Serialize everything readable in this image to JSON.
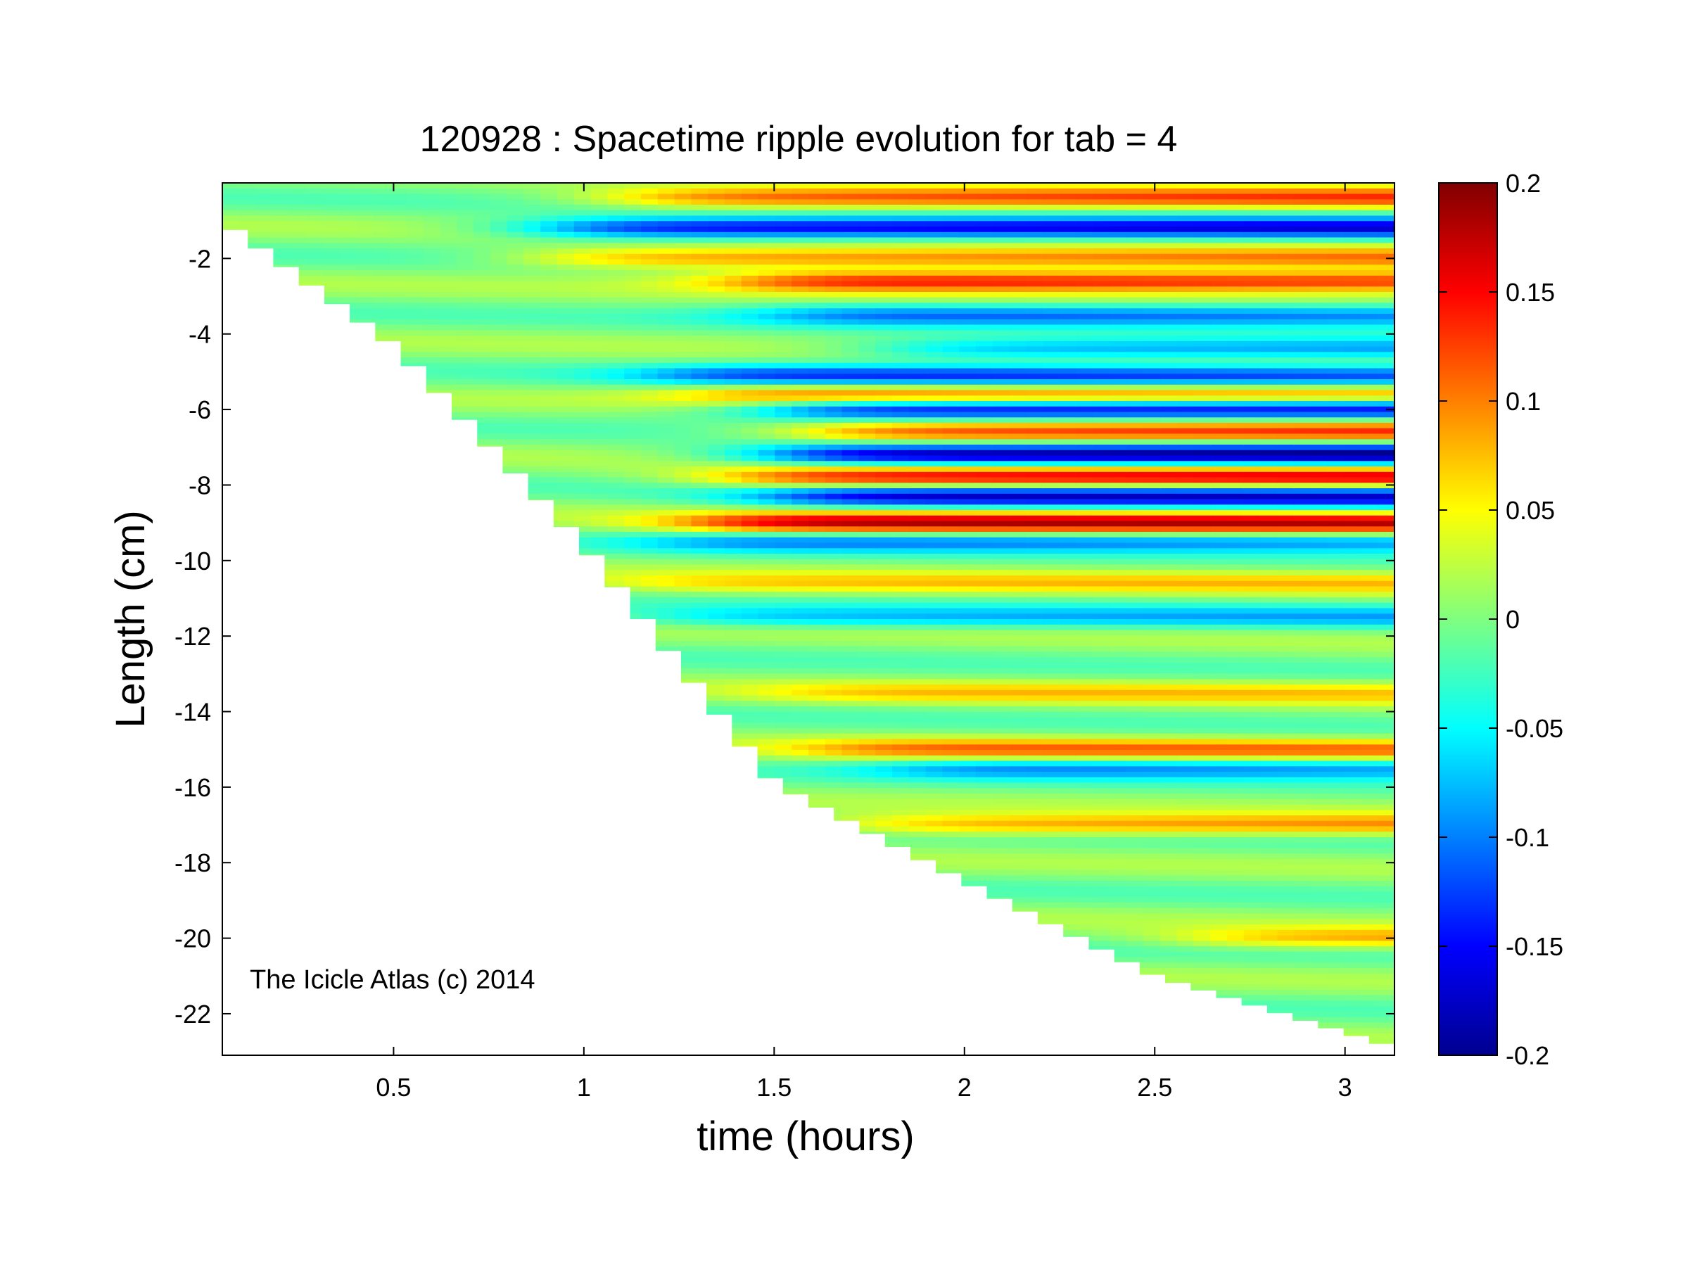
{
  "chart_data": {
    "type": "heatmap",
    "title": "120928 : Spacetime ripple evolution for tab = 4",
    "xlabel": "time (hours)",
    "ylabel": "Length (cm)",
    "xlim": [
      0.05,
      3.13
    ],
    "ylim": [
      -23.1,
      0
    ],
    "x_ticks": [
      0.5,
      1,
      1.5,
      2,
      2.5,
      3
    ],
    "x_tick_labels": [
      "0.5",
      "1",
      "1.5",
      "2",
      "2.5",
      "3"
    ],
    "y_ticks": [
      -2,
      -4,
      -6,
      -8,
      -10,
      -12,
      -14,
      -16,
      -18,
      -20,
      -22
    ],
    "y_tick_labels": [
      "-2",
      "-4",
      "-6",
      "-8",
      "-10",
      "-12",
      "-14",
      "-16",
      "-18",
      "-20",
      "-22"
    ],
    "colormap": "jet",
    "color_range": [
      -0.2,
      0.2
    ],
    "colorbar_ticks": [
      0.2,
      0.15,
      0.1,
      0.05,
      0,
      -0.05,
      -0.1,
      -0.15,
      -0.2
    ],
    "colorbar_tick_labels": [
      "0.2",
      "0.15",
      "0.1",
      "0.05",
      "0",
      "-0.05",
      "-0.1",
      "-0.15",
      "-0.2"
    ],
    "grid": false,
    "annotations": [
      "The Icicle Atlas (c) 2014"
    ],
    "icicle_tip_boundary": {
      "time_hours": [
        0.05,
        0.5,
        1.0,
        1.5,
        2.0,
        2.5,
        3.0,
        3.13
      ],
      "length_cm": [
        -1.0,
        -4.3,
        -9.6,
        -15.9,
        -18.5,
        -21.0,
        -22.5,
        -22.9
      ]
    },
    "ripple_bands": [
      {
        "length_cm": -0.4,
        "amplitude": 0.12,
        "onset_hours": 1.1
      },
      {
        "length_cm": -1.2,
        "amplitude": -0.16,
        "onset_hours": 0.9
      },
      {
        "length_cm": -2.0,
        "amplitude": 0.1,
        "onset_hours": 0.9
      },
      {
        "length_cm": -2.6,
        "amplitude": 0.14,
        "onset_hours": 1.4
      },
      {
        "length_cm": -3.5,
        "amplitude": -0.1,
        "onset_hours": 1.5
      },
      {
        "length_cm": -4.4,
        "amplitude": -0.09,
        "onset_hours": 1.8
      },
      {
        "length_cm": -5.1,
        "amplitude": -0.12,
        "onset_hours": 1.2
      },
      {
        "length_cm": -5.6,
        "amplitude": 0.11,
        "onset_hours": 1.3
      },
      {
        "length_cm": -6.0,
        "amplitude": -0.17,
        "onset_hours": 1.5
      },
      {
        "length_cm": -6.6,
        "amplitude": 0.14,
        "onset_hours": 1.6
      },
      {
        "length_cm": -7.2,
        "amplitude": -0.19,
        "onset_hours": 1.5
      },
      {
        "length_cm": -7.8,
        "amplitude": 0.15,
        "onset_hours": 1.4
      },
      {
        "length_cm": -8.3,
        "amplitude": -0.16,
        "onset_hours": 1.5
      },
      {
        "length_cm": -9.0,
        "amplitude": 0.17,
        "onset_hours": 1.3
      },
      {
        "length_cm": -9.5,
        "amplitude": -0.09,
        "onset_hours": 1.2
      },
      {
        "length_cm": -10.6,
        "amplitude": 0.06,
        "onset_hours": 1.1
      },
      {
        "length_cm": -11.5,
        "amplitude": -0.07,
        "onset_hours": 1.2
      },
      {
        "length_cm": -13.5,
        "amplitude": 0.06,
        "onset_hours": 1.5
      },
      {
        "length_cm": -15.0,
        "amplitude": 0.1,
        "onset_hours": 1.6
      },
      {
        "length_cm": -15.5,
        "amplitude": -0.09,
        "onset_hours": 1.8
      },
      {
        "length_cm": -17.0,
        "amplitude": 0.09,
        "onset_hours": 1.7
      },
      {
        "length_cm": -20.0,
        "amplitude": 0.08,
        "onset_hours": 2.6
      }
    ]
  }
}
